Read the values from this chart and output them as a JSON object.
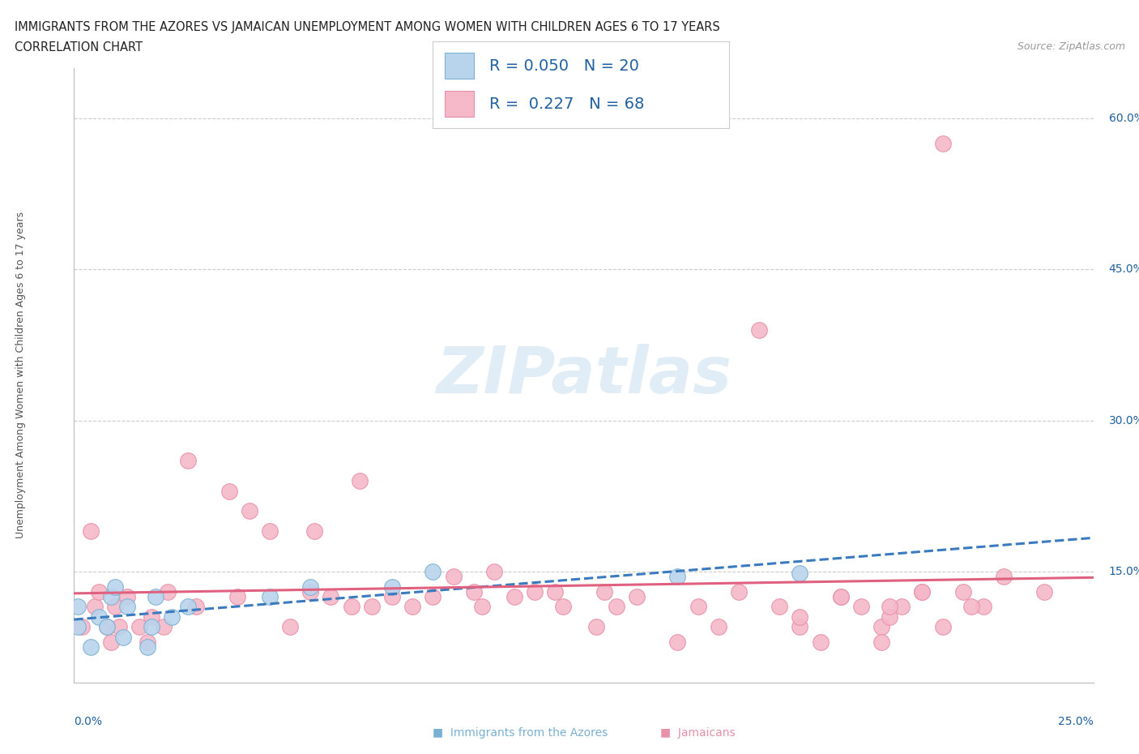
{
  "title_line1": "IMMIGRANTS FROM THE AZORES VS JAMAICAN UNEMPLOYMENT AMONG WOMEN WITH CHILDREN AGES 6 TO 17 YEARS",
  "title_line2": "CORRELATION CHART",
  "source_text": "Source: ZipAtlas.com",
  "xmin": 0.0,
  "xmax": 0.25,
  "ymin": 0.04,
  "ymax": 0.65,
  "ylabel": "Unemployment Among Women with Children Ages 6 to 17 years",
  "color_blue_fill": "#b8d4ed",
  "color_blue_edge": "#7ab0d4",
  "color_pink_fill": "#f4b8c8",
  "color_pink_edge": "#e890a8",
  "color_line_blue": "#3a7abf",
  "color_line_pink": "#e06080",
  "color_text_blue": "#2060a0",
  "watermark": "ZIPatlas",
  "azores_x": [
    0.001,
    0.001,
    0.004,
    0.006,
    0.008,
    0.009,
    0.01,
    0.012,
    0.013,
    0.018,
    0.019,
    0.02,
    0.024,
    0.028,
    0.048,
    0.058,
    0.078,
    0.088,
    0.148,
    0.178
  ],
  "azores_y": [
    0.095,
    0.115,
    0.075,
    0.105,
    0.095,
    0.125,
    0.135,
    0.085,
    0.115,
    0.075,
    0.095,
    0.125,
    0.105,
    0.115,
    0.125,
    0.135,
    0.135,
    0.15,
    0.145,
    0.148
  ],
  "jamaica_x": [
    0.002,
    0.004,
    0.005,
    0.006,
    0.008,
    0.009,
    0.01,
    0.011,
    0.013,
    0.016,
    0.018,
    0.019,
    0.022,
    0.023,
    0.028,
    0.03,
    0.038,
    0.04,
    0.043,
    0.048,
    0.053,
    0.058,
    0.059,
    0.063,
    0.068,
    0.07,
    0.073,
    0.078,
    0.083,
    0.088,
    0.093,
    0.098,
    0.1,
    0.103,
    0.108,
    0.113,
    0.118,
    0.12,
    0.128,
    0.13,
    0.133,
    0.138,
    0.148,
    0.153,
    0.158,
    0.163,
    0.168,
    0.173,
    0.178,
    0.183,
    0.188,
    0.193,
    0.198,
    0.2,
    0.203,
    0.208,
    0.213,
    0.218,
    0.223,
    0.178,
    0.188,
    0.198,
    0.208,
    0.213,
    0.2,
    0.22,
    0.228,
    0.238
  ],
  "jamaica_y": [
    0.095,
    0.19,
    0.115,
    0.13,
    0.095,
    0.08,
    0.115,
    0.095,
    0.125,
    0.095,
    0.08,
    0.105,
    0.095,
    0.13,
    0.26,
    0.115,
    0.23,
    0.125,
    0.21,
    0.19,
    0.095,
    0.13,
    0.19,
    0.125,
    0.115,
    0.24,
    0.115,
    0.125,
    0.115,
    0.125,
    0.145,
    0.13,
    0.115,
    0.15,
    0.125,
    0.13,
    0.13,
    0.115,
    0.095,
    0.13,
    0.115,
    0.125,
    0.08,
    0.115,
    0.095,
    0.13,
    0.39,
    0.115,
    0.095,
    0.08,
    0.125,
    0.115,
    0.095,
    0.105,
    0.115,
    0.13,
    0.575,
    0.13,
    0.115,
    0.105,
    0.125,
    0.08,
    0.13,
    0.095,
    0.115,
    0.115,
    0.145,
    0.13
  ]
}
